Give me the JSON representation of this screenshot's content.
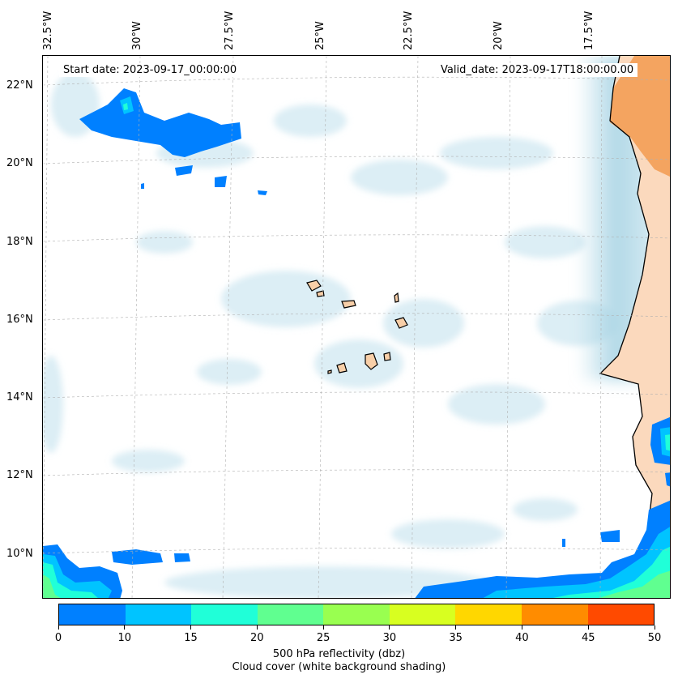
{
  "map": {
    "start_date": "Start date: 2023-09-17_00:00:00",
    "valid_date": "Valid_date: 2023-09-17T18:00:00.00",
    "lon_labels": [
      "32.5°W",
      "30°W",
      "27.5°W",
      "25°W",
      "22.5°W",
      "20°W",
      "17.5°W"
    ],
    "lat_labels": [
      "22°N",
      "20°N",
      "18°N",
      "16°N",
      "14°N",
      "12°N",
      "10°N"
    ]
  },
  "colorbar": {
    "ticks": [
      "0",
      "10",
      "15",
      "20",
      "25",
      "30",
      "35",
      "40",
      "45",
      "50"
    ],
    "colors": [
      "#0080ff",
      "#00c4ff",
      "#20ffd8",
      "#60ff90",
      "#99ff50",
      "#d8ff20",
      "#ffd700",
      "#ff8c00",
      "#ff4a00"
    ],
    "label": "500 hPa reflectivity (dbz)",
    "sublabel": "Cloud cover (white background shading)"
  },
  "legend_colors": {
    "land": "#f4a460",
    "land_light": "#fbd9bd",
    "cloud": "#a8d4e4"
  }
}
